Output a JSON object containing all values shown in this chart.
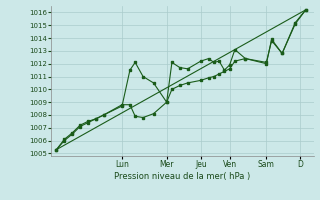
{
  "title": "",
  "xlabel": "Pression niveau de la mer( hPa )",
  "bg_color": "#cce8e8",
  "grid_color": "#aacccc",
  "line_color": "#1a5c1a",
  "ylim": [
    1004.8,
    1016.5
  ],
  "yticks": [
    1005,
    1006,
    1007,
    1008,
    1009,
    1010,
    1011,
    1012,
    1013,
    1014,
    1015,
    1016
  ],
  "day_labels": [
    "Lun",
    "Mer",
    "Jeu",
    "Ven",
    "Sam",
    "D"
  ],
  "day_x": [
    0.27,
    0.44,
    0.57,
    0.68,
    0.82,
    0.95
  ],
  "xlim": [
    0.0,
    1.0
  ],
  "series1_x": [
    0.02,
    0.05,
    0.08,
    0.11,
    0.14,
    0.17,
    0.2,
    0.27,
    0.3,
    0.32,
    0.35,
    0.39,
    0.44,
    0.46,
    0.49,
    0.52,
    0.57,
    0.6,
    0.62,
    0.64,
    0.66,
    0.68,
    0.7,
    0.74,
    0.82,
    0.84,
    0.88,
    0.93,
    0.97
  ],
  "series1_y": [
    1005.3,
    1006.0,
    1006.5,
    1007.1,
    1007.4,
    1007.7,
    1008.0,
    1008.7,
    1011.5,
    1012.1,
    1011.0,
    1010.5,
    1009.0,
    1012.1,
    1011.7,
    1011.6,
    1012.2,
    1012.4,
    1012.1,
    1012.2,
    1011.5,
    1011.9,
    1013.1,
    1012.4,
    1012.0,
    1013.9,
    1012.8,
    1015.1,
    1016.2
  ],
  "series2_x": [
    0.02,
    0.05,
    0.08,
    0.11,
    0.14,
    0.17,
    0.2,
    0.27,
    0.3,
    0.32,
    0.35,
    0.39,
    0.44,
    0.46,
    0.49,
    0.52,
    0.57,
    0.6,
    0.62,
    0.64,
    0.66,
    0.68,
    0.7,
    0.74,
    0.82,
    0.84,
    0.88,
    0.93,
    0.97
  ],
  "series2_y": [
    1005.3,
    1006.1,
    1006.6,
    1007.2,
    1007.5,
    1007.7,
    1008.0,
    1008.8,
    1008.8,
    1007.9,
    1007.8,
    1008.1,
    1009.0,
    1010.0,
    1010.3,
    1010.5,
    1010.7,
    1010.9,
    1011.0,
    1011.2,
    1011.4,
    1011.6,
    1012.2,
    1012.4,
    1012.1,
    1013.8,
    1012.8,
    1015.2,
    1016.2
  ],
  "trend_x": [
    0.02,
    0.97
  ],
  "trend_y": [
    1005.3,
    1016.2
  ]
}
